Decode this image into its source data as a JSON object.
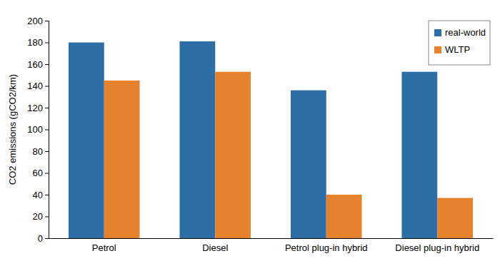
{
  "chart_data": {
    "type": "bar",
    "y_label": "CO2 emissions (gCO2/km)",
    "categories": [
      "Petrol",
      "Diesel",
      "Petrol plug-in hybrid",
      "Diesel plug-in hybrid"
    ],
    "series": [
      {
        "name": "real-world",
        "color": "#2e6ea6",
        "values": [
          180,
          181,
          136,
          153
        ]
      },
      {
        "name": "WLTP",
        "color": "#e6822e",
        "values": [
          145,
          153,
          40,
          37
        ]
      }
    ],
    "ylim": [
      0,
      200
    ],
    "yticks": [
      0,
      20,
      40,
      60,
      80,
      100,
      120,
      140,
      160,
      180,
      200
    ],
    "grid": false,
    "legend": "upper right"
  }
}
